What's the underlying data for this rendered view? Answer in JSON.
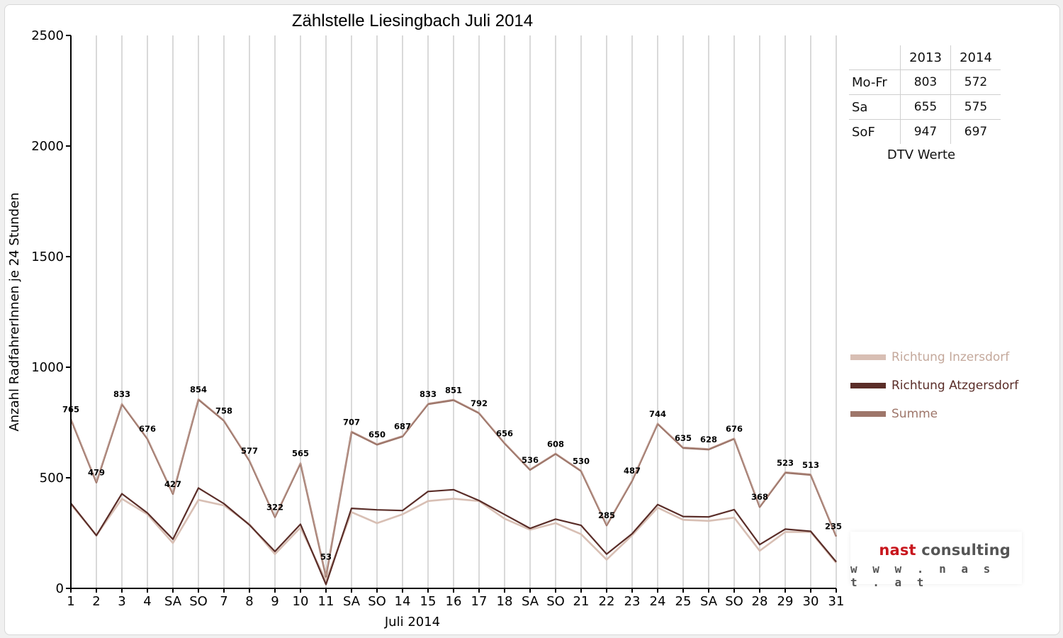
{
  "chart_data": {
    "type": "line",
    "title": "Zählstelle Liesingbach Juli 2014",
    "xlabel": "Juli 2014",
    "ylabel": "Anzahl RadfahrerInnen je 24 Stunden",
    "ylim": [
      0,
      2500
    ],
    "yticks": [
      0,
      500,
      1000,
      1500,
      2000,
      2500
    ],
    "grid": "vertical",
    "legend_position": "right",
    "categories": [
      "1",
      "2",
      "3",
      "4",
      "SA",
      "SO",
      "7",
      "8",
      "9",
      "10",
      "11",
      "SA",
      "SO",
      "14",
      "15",
      "16",
      "17",
      "18",
      "SA",
      "SO",
      "21",
      "22",
      "23",
      "24",
      "25",
      "SA",
      "SO",
      "28",
      "29",
      "30",
      "31"
    ],
    "sunday_label_color": "#ff0000",
    "series": [
      {
        "name": "Richtung Inzersdorf",
        "color": "#d8bfb4",
        "values": [
          380,
          240,
          405,
          335,
          205,
          400,
          375,
          290,
          155,
          275,
          35,
          345,
          295,
          335,
          395,
          405,
          395,
          315,
          265,
          295,
          245,
          130,
          240,
          365,
          310,
          305,
          320,
          170,
          255,
          255,
          115
        ]
      },
      {
        "name": "Richtung Atzgersdorf",
        "color": "#5a2d28",
        "values": [
          385,
          239,
          428,
          341,
          222,
          454,
          383,
          287,
          167,
          290,
          18,
          362,
          355,
          352,
          438,
          446,
          397,
          334,
          271,
          313,
          285,
          155,
          247,
          379,
          325,
          323,
          356,
          198,
          268,
          258,
          120
        ]
      },
      {
        "name": "Summe",
        "color": "#9e766a",
        "values": [
          765,
          479,
          833,
          676,
          427,
          854,
          758,
          577,
          322,
          565,
          53,
          707,
          650,
          687,
          833,
          851,
          792,
          656,
          536,
          608,
          530,
          285,
          487,
          744,
          635,
          628,
          676,
          368,
          523,
          513,
          235
        ]
      }
    ],
    "data_labels": [
      "765",
      "479",
      "833",
      "676",
      "427",
      "854",
      "758",
      "577",
      "322",
      "565",
      "53",
      "707",
      "650",
      "687",
      "833",
      "851",
      "792",
      "656",
      "536",
      "608",
      "530",
      "285",
      "487",
      "744",
      "635",
      "628",
      "676",
      "368",
      "523",
      "513",
      "235"
    ]
  },
  "dtv": {
    "columns": [
      "2013",
      "2014"
    ],
    "rows": [
      {
        "label": "Mo-Fr",
        "v2013": "803",
        "v2014": "572"
      },
      {
        "label": "Sa",
        "v2013": "655",
        "v2014": "575"
      },
      {
        "label": "SoF",
        "v2013": "947",
        "v2014": "697"
      }
    ],
    "caption": "DTV Werte"
  },
  "logo": {
    "brand_part1": "nast",
    "brand_part2": " consulting",
    "url": "w w w . n a s t . a t",
    "brand_color": "#c8161d"
  }
}
